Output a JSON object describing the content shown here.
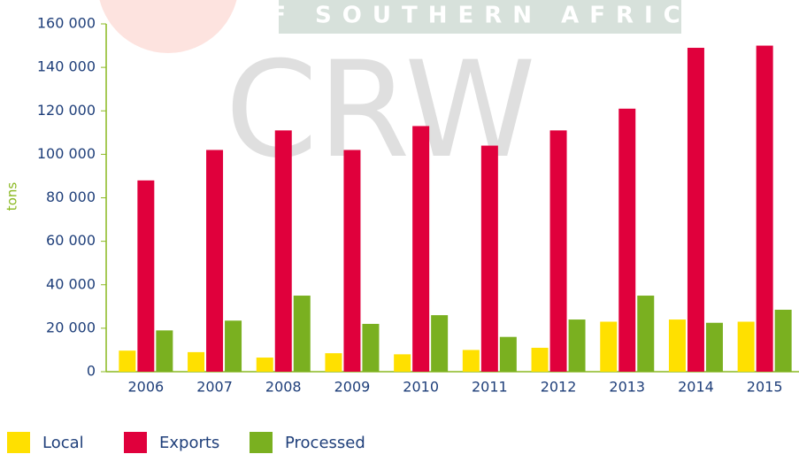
{
  "chart_data": {
    "type": "bar",
    "watermark": [
      "OF SOUTHERN AFRICA",
      "CRW"
    ],
    "y_label": "tons",
    "categories": [
      "2006",
      "2007",
      "2008",
      "2009",
      "2010",
      "2011",
      "2012",
      "2013",
      "2014",
      "2015"
    ],
    "series": [
      {
        "name": "Local",
        "color": "#ffe000",
        "values": [
          9700,
          9000,
          6500,
          8500,
          8000,
          10000,
          11000,
          23000,
          24000,
          23000
        ]
      },
      {
        "name": "Exports",
        "color": "#e0003c",
        "values": [
          88000,
          102000,
          111000,
          102000,
          113000,
          104000,
          111000,
          121000,
          149000,
          150000
        ]
      },
      {
        "name": "Processed",
        "color": "#7ab020",
        "values": [
          19000,
          23500,
          35000,
          22000,
          26000,
          16000,
          24000,
          35000,
          22500,
          28500
        ]
      }
    ],
    "ylim": [
      0,
      160000
    ],
    "yticks": [
      0,
      {
        "value": 20000,
        "label": "20 000"
      },
      {
        "value": 40000,
        "label": "40 000"
      },
      {
        "value": 60000,
        "label": "60 000"
      },
      {
        "value": 80000,
        "label": "80 000"
      },
      {
        "value": 100000,
        "label": "100 000"
      },
      {
        "value": 120000,
        "label": "120 000"
      },
      {
        "value": 140000,
        "label": "140 000"
      },
      {
        "value": 160000,
        "label": "160 000"
      }
    ],
    "grid": false,
    "legend": "bottom"
  }
}
